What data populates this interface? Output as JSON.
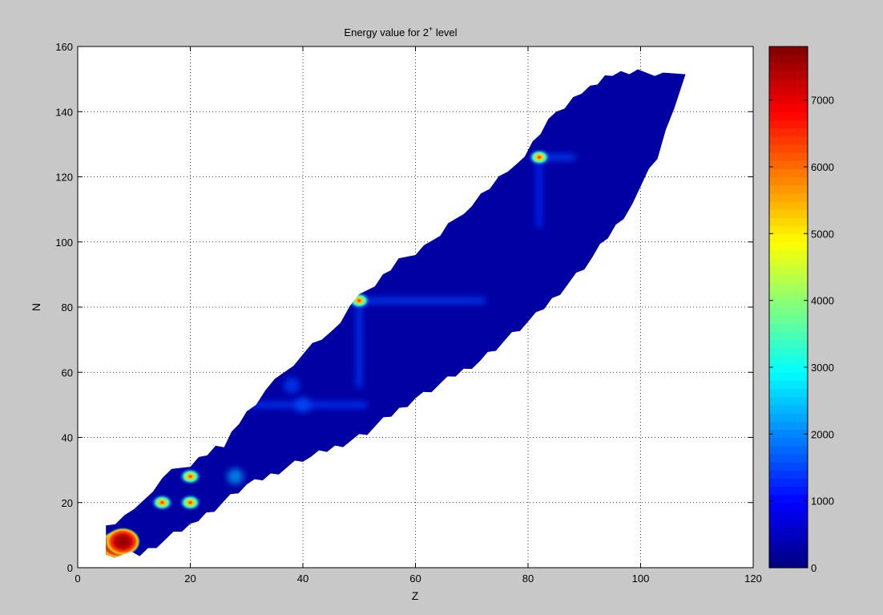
{
  "chart_data": {
    "type": "heatmap",
    "title": "Energy value for 2",
    "title_superscript": "+",
    "title_suffix": " level",
    "xlabel": "Z",
    "ylabel": "N",
    "xlim": [
      0,
      120
    ],
    "ylim": [
      0,
      160
    ],
    "xticks": [
      0,
      20,
      40,
      60,
      80,
      100,
      120
    ],
    "yticks": [
      0,
      20,
      40,
      60,
      80,
      100,
      120,
      140,
      160
    ],
    "grid": true,
    "colormap": "jet",
    "colorbar": {
      "range": [
        0,
        7800
      ],
      "ticks": [
        0,
        1000,
        2000,
        3000,
        4000,
        5000,
        6000,
        7000
      ]
    },
    "region": {
      "description_free": true,
      "lower_edge": [
        [
          5,
          4
        ],
        [
          11,
          4
        ],
        [
          20,
          13
        ],
        [
          30,
          25
        ],
        [
          40,
          33
        ],
        [
          50,
          40
        ],
        [
          60,
          52
        ],
        [
          70,
          62
        ],
        [
          80,
          75
        ],
        [
          90,
          92
        ],
        [
          97,
          108
        ],
        [
          103,
          126
        ],
        [
          106,
          142
        ],
        [
          108,
          152
        ]
      ],
      "upper_edge": [
        [
          5,
          13
        ],
        [
          10,
          17
        ],
        [
          15,
          28
        ],
        [
          20,
          32
        ],
        [
          26,
          38
        ],
        [
          30,
          48
        ],
        [
          35,
          57
        ],
        [
          40,
          66
        ],
        [
          45,
          72
        ],
        [
          50,
          83
        ],
        [
          57,
          94
        ],
        [
          63,
          100
        ],
        [
          70,
          112
        ],
        [
          78,
          124
        ],
        [
          85,
          140
        ],
        [
          91,
          148
        ],
        [
          95,
          152
        ],
        [
          104,
          152
        ]
      ],
      "background_energy": 500
    },
    "hotspots": [
      {
        "z": 7,
        "n": 7,
        "energy": 7500
      },
      {
        "z": 8,
        "n": 8,
        "energy": 7200
      },
      {
        "z": 15,
        "n": 20,
        "energy": 4000
      },
      {
        "z": 20,
        "n": 20,
        "energy": 4000
      },
      {
        "z": 20,
        "n": 28,
        "energy": 3600
      },
      {
        "z": 28,
        "n": 28,
        "energy": 2300
      },
      {
        "z": 40,
        "n": 50,
        "energy": 1600
      },
      {
        "z": 38,
        "n": 56,
        "energy": 1500
      },
      {
        "z": 50,
        "n": 82,
        "energy": 4000
      },
      {
        "z": 82,
        "n": 126,
        "energy": 4100
      }
    ],
    "ridges": [
      {
        "from": [
          31,
          50
        ],
        "to": [
          51,
          50
        ],
        "energy": 1400
      },
      {
        "from": [
          50,
          83
        ],
        "to": [
          50,
          56
        ],
        "energy": 1400
      },
      {
        "from": [
          50,
          82
        ],
        "to": [
          72,
          82
        ],
        "energy": 1500
      },
      {
        "from": [
          82,
          126
        ],
        "to": [
          88,
          126
        ],
        "energy": 1500
      },
      {
        "from": [
          82,
          126
        ],
        "to": [
          82,
          105
        ],
        "energy": 1300
      }
    ]
  }
}
